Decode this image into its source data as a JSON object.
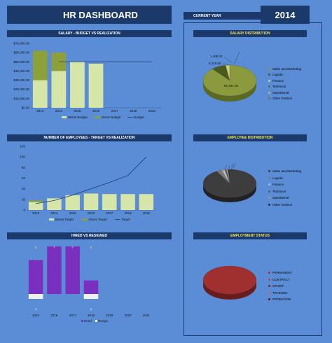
{
  "header": {
    "title": "HR DASHBOARD",
    "current_year_label": "CURRENT YEAR",
    "current_year": "2014"
  },
  "sections": {
    "salary": "SALARY - BUDGET VS REALIZATION",
    "employees": "NUMBER OF EMPLOYEES - TARGET VS REALIZATION",
    "hired": "HIRED VS RESIGNED",
    "salary_dist": "SALARY DISTRIBUTION",
    "employee_dist": "EMPLOYEE DISTRIBUTION",
    "employment_status": "EMPLOYMENT STATUS"
  },
  "chart_data": [
    {
      "id": "salary",
      "type": "bar",
      "categories": [
        "2013",
        "2014",
        "2015",
        "2016",
        "2017",
        "2018",
        "2019"
      ],
      "series": [
        {
          "name": "Below Budget",
          "values": [
            30000,
            40000,
            50000,
            48000,
            0,
            0,
            0
          ]
        },
        {
          "name": "Above Budget",
          "values": [
            32000,
            20000,
            0,
            0,
            0,
            0,
            0
          ]
        },
        {
          "name": "Budget",
          "values": [
            null,
            50000,
            50000,
            50000,
            50000,
            50000,
            50000
          ]
        }
      ],
      "yticks": [
        "$0.00",
        "$10,000.00",
        "$20,000.00",
        "$30,000.00",
        "$40,000.00",
        "$50,000.00",
        "$60,000.00",
        "$70,000.00"
      ],
      "ylim": [
        0,
        70000
      ]
    },
    {
      "id": "employees",
      "type": "bar",
      "categories": [
        "2013",
        "2014",
        "2015",
        "2016",
        "2017",
        "2018",
        "2019"
      ],
      "series": [
        {
          "name": "Below Target",
          "values": [
            15,
            22,
            28,
            31,
            30,
            30,
            30
          ]
        },
        {
          "name": "Above Target",
          "values": [
            3,
            0,
            0,
            0,
            0,
            0,
            0
          ]
        },
        {
          "name": "Target",
          "values": [
            12,
            18,
            28,
            40,
            52,
            65,
            100
          ]
        }
      ],
      "yticks": [
        "0",
        "20",
        "40",
        "60",
        "80",
        "100",
        "120"
      ],
      "ylim": [
        0,
        120
      ]
    },
    {
      "id": "hired",
      "type": "bar",
      "categories": [
        "2015",
        "2016",
        "2017",
        "2018",
        "2019",
        "2020",
        "2021"
      ],
      "series": [
        {
          "name": "Hired",
          "values": [
            5,
            7,
            7,
            2,
            0,
            0,
            0
          ]
        },
        {
          "name": "Resign",
          "values": [
            1,
            0,
            0,
            1,
            0,
            0,
            0
          ]
        }
      ],
      "top_labels": [
        "5",
        "7",
        "7",
        "2",
        "",
        "",
        ""
      ],
      "bottom_labels": [
        "1",
        "",
        "",
        "1",
        "",
        "",
        ""
      ]
    },
    {
      "id": "salary_dist",
      "type": "pie",
      "labels": [
        "Sales and Marketing",
        "Logistic",
        "Finance",
        "Technical",
        "Operational",
        "Other Division"
      ],
      "values": [
        52451,
        5219,
        1488,
        0,
        0,
        0
      ],
      "data_labels": [
        "52,451.00",
        "5,219.00",
        "1,488.00",
        "",
        "",
        ""
      ],
      "colors": [
        "#8a9a3c",
        "#4a5a1c",
        "#c8d07a",
        "#3a7a3a",
        "#b0c060",
        "#6a7a2a"
      ]
    },
    {
      "id": "employee_dist",
      "type": "pie",
      "labels": [
        "Sales and Marketing",
        "Logistic",
        "Finance",
        "Technical",
        "Operational",
        "Other Division"
      ],
      "values": [
        92,
        3,
        2,
        1,
        1,
        1
      ],
      "colors": [
        "#3d3d3d",
        "#7a7a7a",
        "#bdbdbd",
        "#5a5a5a",
        "#9a9a9a",
        "#2a2a2a"
      ]
    },
    {
      "id": "employment_status",
      "type": "pie",
      "labels": [
        "PERMANENT",
        "CONTRACT",
        "OTHER",
        "TRAINING",
        "PROBATION"
      ],
      "values": [
        100,
        0,
        0,
        0,
        0
      ],
      "colors": [
        "#a03030",
        "#c04040",
        "#802020",
        "#d06060",
        "#601818"
      ]
    }
  ],
  "legends": {
    "salary": [
      "Below Budget",
      "Above Budget",
      "Budget"
    ],
    "employees": [
      "Below Target",
      "Above Target",
      "Target"
    ],
    "hired": [
      "Hired",
      "Resign"
    ]
  },
  "colors": {
    "bg": "#5b8dd6",
    "dark": "#1b3a6b",
    "bar_light": "#d6e5a8",
    "bar_olive": "#8ea03a",
    "line": "#1b3a6b",
    "hired": "#7a2fbf",
    "resign": "#f0f0f0"
  }
}
